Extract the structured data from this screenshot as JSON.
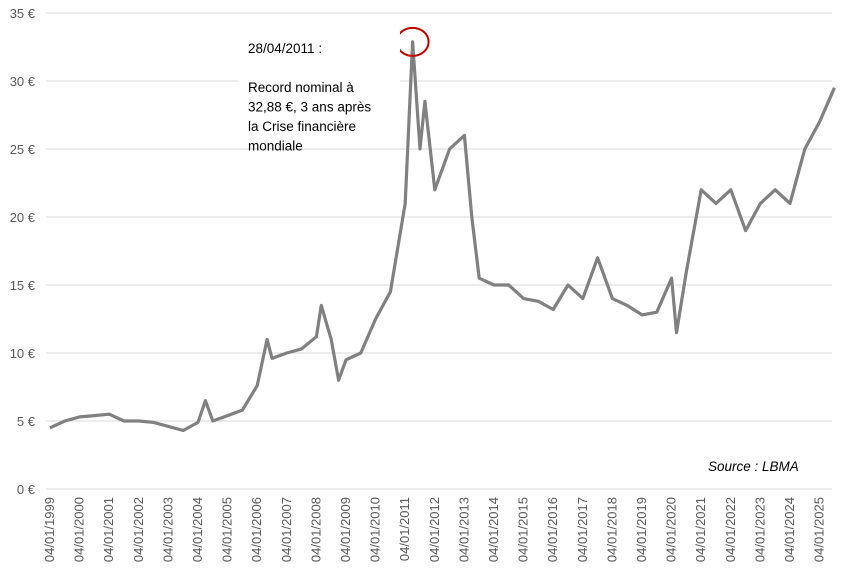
{
  "chart_data": {
    "type": "line",
    "title": "",
    "xlabel": "",
    "ylabel": "",
    "ylim": [
      0,
      35
    ],
    "yticks": [
      "0 €",
      "5 €",
      "10 €",
      "15 €",
      "20 €",
      "25 €",
      "30 €",
      "35 €"
    ],
    "xticks": [
      "04/01/1999",
      "04/01/2000",
      "04/01/2001",
      "04/01/2002",
      "04/01/2003",
      "04/01/2004",
      "04/01/2005",
      "04/01/2006",
      "04/01/2007",
      "04/01/2008",
      "04/01/2009",
      "04/01/2010",
      "04/01/2011",
      "04/01/2012",
      "04/01/2013",
      "04/01/2014",
      "04/01/2015",
      "04/01/2016",
      "04/01/2017",
      "04/01/2018",
      "04/01/2019",
      "04/01/2020",
      "04/01/2021",
      "04/01/2022",
      "04/01/2023",
      "04/01/2024",
      "04/01/2025"
    ],
    "grid": "horizontal",
    "line_color": "#808080",
    "series": [
      {
        "x": [
          "1999-01",
          "1999-07",
          "2000-01",
          "2000-07",
          "2001-01",
          "2001-07",
          "2002-01",
          "2002-07",
          "2003-01",
          "2003-07",
          "2004-01",
          "2004-04",
          "2004-07",
          "2005-01",
          "2005-07",
          "2006-01",
          "2006-05",
          "2006-07",
          "2007-01",
          "2007-07",
          "2008-01",
          "2008-03",
          "2008-07",
          "2008-10",
          "2009-01",
          "2009-07",
          "2010-01",
          "2010-07",
          "2011-01",
          "2011-04",
          "2011-07",
          "2011-09",
          "2012-01",
          "2012-07",
          "2013-01",
          "2013-04",
          "2013-07",
          "2014-01",
          "2014-07",
          "2015-01",
          "2015-07",
          "2016-01",
          "2016-07",
          "2017-01",
          "2017-07",
          "2018-01",
          "2018-07",
          "2019-01",
          "2019-07",
          "2020-01",
          "2020-03",
          "2020-07",
          "2021-01",
          "2021-07",
          "2022-01",
          "2022-07",
          "2023-01",
          "2023-07",
          "2024-01",
          "2024-07",
          "2025-01",
          "2025-07"
        ],
        "values": [
          4.5,
          5.0,
          5.3,
          5.4,
          5.5,
          5.0,
          5.0,
          4.9,
          4.6,
          4.3,
          4.9,
          6.5,
          5.0,
          5.4,
          5.8,
          7.6,
          11.0,
          9.6,
          10.0,
          10.3,
          11.2,
          13.5,
          11.0,
          8.0,
          9.5,
          10.0,
          12.5,
          14.5,
          21.0,
          32.88,
          25.0,
          28.5,
          22.0,
          25.0,
          26.0,
          20.0,
          15.5,
          15.0,
          15.0,
          14.0,
          13.8,
          13.2,
          15.0,
          14.0,
          17.0,
          14.0,
          13.5,
          12.8,
          13.0,
          15.5,
          11.5,
          16.0,
          22.0,
          21.0,
          22.0,
          19.0,
          21.0,
          22.0,
          21.0,
          25.0,
          27.0,
          29.5
        ]
      }
    ],
    "annotations": [
      {
        "lines": [
          "28/04/2011 :",
          "",
          "Record nominal à",
          "32,88 €, 3 ans après",
          "la Crise financière",
          "mondiale"
        ]
      }
    ],
    "highlight": {
      "x": "2011-04",
      "y": 32.88,
      "color": "#c00000"
    },
    "source": "Source : LBMA"
  }
}
